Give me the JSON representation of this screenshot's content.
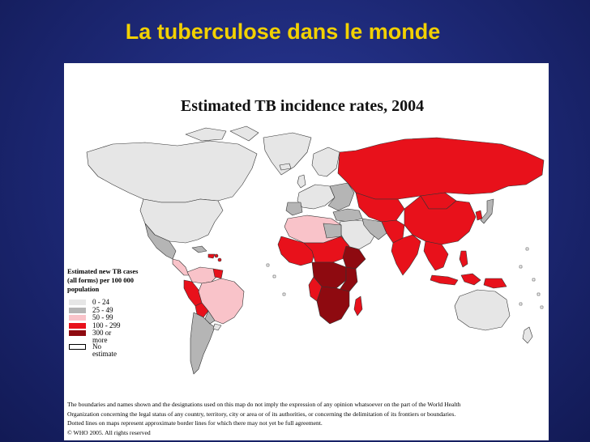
{
  "slide": {
    "title": "La tuberculose dans le monde"
  },
  "map": {
    "title": "Estimated TB incidence rates, 2004",
    "legend": {
      "title": "Estimated new TB cases (all forms) per 100 000 population",
      "items": [
        {
          "label": "0 - 24",
          "color": "#e6e6e6"
        },
        {
          "label": "25 - 49",
          "color": "#b5b5b5"
        },
        {
          "label": "50 - 99",
          "color": "#f9c3c9"
        },
        {
          "label": "100 - 299",
          "color": "#e8111b"
        },
        {
          "label": "300 or more",
          "color": "#8e0a10"
        },
        {
          "label": "No estimate",
          "color": "#ffffff"
        }
      ]
    },
    "disclaimer": {
      "line1": "The boundaries and names shown and the designations used on this map do not imply the expression of any opinion whatsoever on the part of the World Health",
      "line2": "Organization concerning the legal status of any country, territory, city or area or of its authorities, or concerning the delimitation of its frontiers or boundaries.",
      "line3": "Dotted lines on maps represent approximate border lines for which there may not yet be full agreement.",
      "line4": "© WHO 2005. All rights reserved"
    }
  }
}
